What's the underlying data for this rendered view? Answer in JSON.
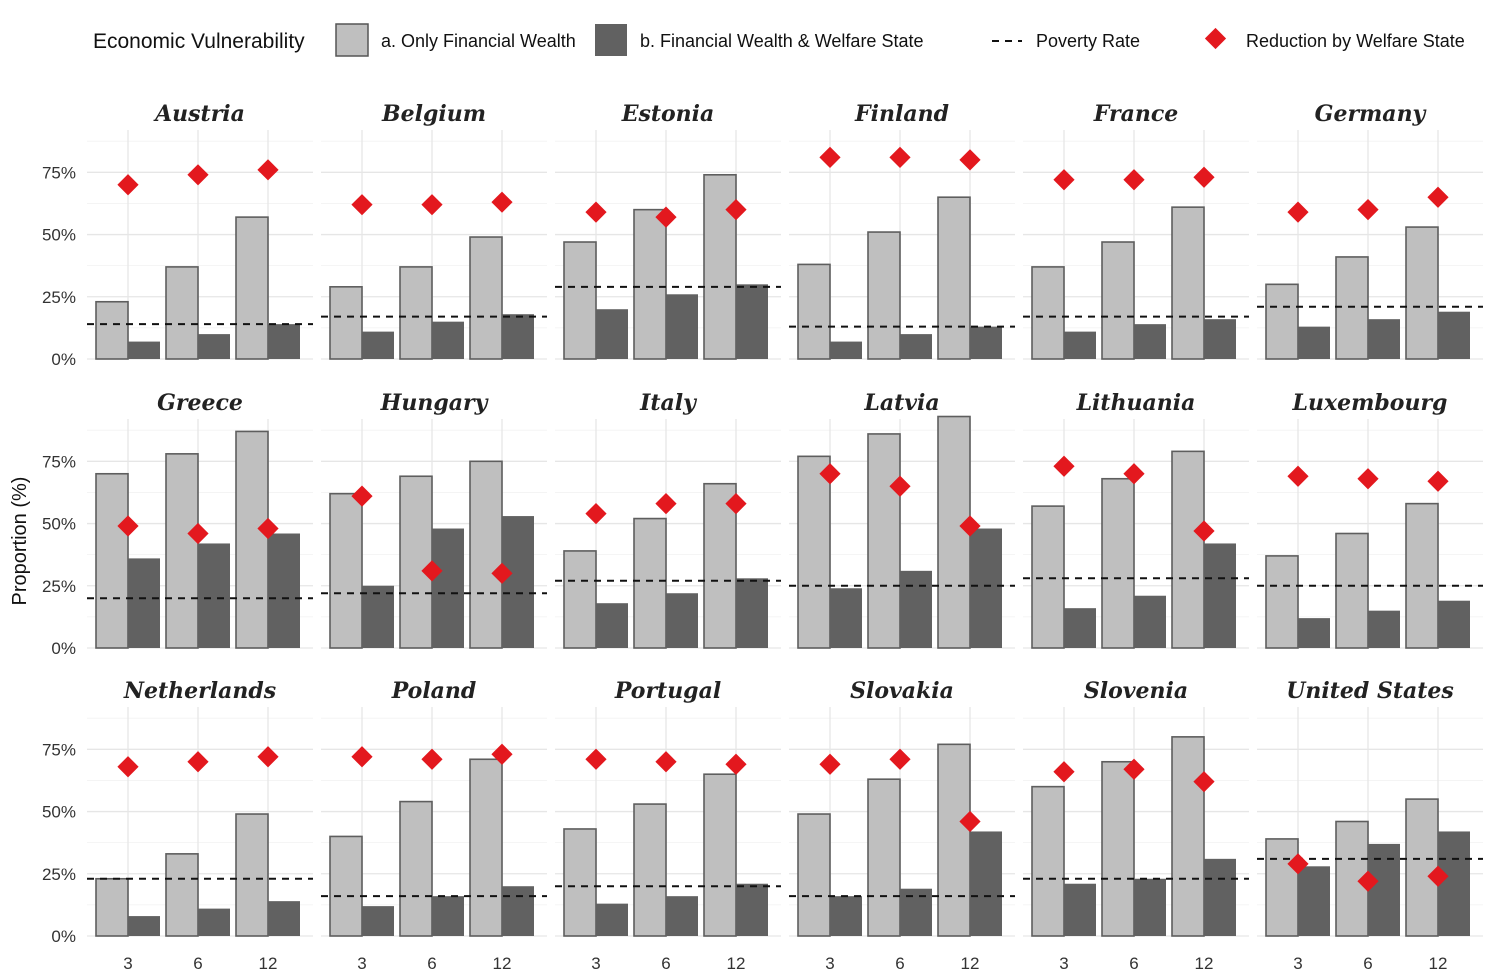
{
  "legend": {
    "title": "Economic Vulnerability",
    "items": [
      {
        "label": "a. Only Financial Wealth",
        "color": "#bfbfbf"
      },
      {
        "label": "b. Financial Wealth & Welfare State",
        "color": "#616161"
      },
      {
        "label": "Poverty Rate",
        "color": "#111111"
      },
      {
        "label": "Reduction by Welfare State",
        "color": "#e3181e"
      }
    ]
  },
  "chart_data": {
    "type": "bar",
    "ylabel": "Proportion (%)",
    "xlabel": "",
    "categories": [
      "3",
      "6",
      "12"
    ],
    "ylim": [
      0,
      92
    ],
    "yticks": [
      0,
      25,
      50,
      75
    ],
    "ytick_labels": [
      "0%",
      "25%",
      "50%",
      "75%"
    ],
    "colors": {
      "only_financial": "#bfbfbf",
      "financial_welfare": "#616161",
      "poverty": "#111111",
      "reduction": "#e3181e"
    },
    "panels": [
      {
        "country": "Austria",
        "only_financial": [
          23,
          37,
          57
        ],
        "financial_welfare": [
          7,
          10,
          14
        ],
        "poverty_rate": 14,
        "reduction": [
          70,
          74,
          76
        ]
      },
      {
        "country": "Belgium",
        "only_financial": [
          29,
          37,
          49
        ],
        "financial_welfare": [
          11,
          15,
          18
        ],
        "poverty_rate": 17,
        "reduction": [
          62,
          62,
          63
        ]
      },
      {
        "country": "Estonia",
        "only_financial": [
          47,
          60,
          74
        ],
        "financial_welfare": [
          20,
          26,
          30
        ],
        "poverty_rate": 29,
        "reduction": [
          59,
          57,
          60
        ]
      },
      {
        "country": "Finland",
        "only_financial": [
          38,
          51,
          65
        ],
        "financial_welfare": [
          7,
          10,
          13
        ],
        "poverty_rate": 13,
        "reduction": [
          81,
          81,
          80
        ]
      },
      {
        "country": "France",
        "only_financial": [
          37,
          47,
          61
        ],
        "financial_welfare": [
          11,
          14,
          16
        ],
        "poverty_rate": 17,
        "reduction": [
          72,
          72,
          73
        ]
      },
      {
        "country": "Germany",
        "only_financial": [
          30,
          41,
          53
        ],
        "financial_welfare": [
          13,
          16,
          19
        ],
        "poverty_rate": 21,
        "reduction": [
          59,
          60,
          65
        ]
      },
      {
        "country": "Greece",
        "only_financial": [
          70,
          78,
          87
        ],
        "financial_welfare": [
          36,
          42,
          46
        ],
        "poverty_rate": 20,
        "reduction": [
          49,
          46,
          48
        ]
      },
      {
        "country": "Hungary",
        "only_financial": [
          62,
          69,
          75
        ],
        "financial_welfare": [
          25,
          48,
          53
        ],
        "poverty_rate": 22,
        "reduction": [
          61,
          31,
          30
        ]
      },
      {
        "country": "Italy",
        "only_financial": [
          39,
          52,
          66
        ],
        "financial_welfare": [
          18,
          22,
          28
        ],
        "poverty_rate": 27,
        "reduction": [
          54,
          58,
          58
        ]
      },
      {
        "country": "Latvia",
        "only_financial": [
          77,
          86,
          93
        ],
        "financial_welfare": [
          24,
          31,
          48
        ],
        "poverty_rate": 25,
        "reduction": [
          70,
          65,
          49
        ]
      },
      {
        "country": "Lithuania",
        "only_financial": [
          57,
          68,
          79
        ],
        "financial_welfare": [
          16,
          21,
          42
        ],
        "poverty_rate": 28,
        "reduction": [
          73,
          70,
          47
        ]
      },
      {
        "country": "Luxembourg",
        "only_financial": [
          37,
          46,
          58
        ],
        "financial_welfare": [
          12,
          15,
          19
        ],
        "poverty_rate": 25,
        "reduction": [
          69,
          68,
          67
        ]
      },
      {
        "country": "Netherlands",
        "only_financial": [
          23,
          33,
          49
        ],
        "financial_welfare": [
          8,
          11,
          14
        ],
        "poverty_rate": 23,
        "reduction": [
          68,
          70,
          72
        ]
      },
      {
        "country": "Poland",
        "only_financial": [
          40,
          54,
          71
        ],
        "financial_welfare": [
          12,
          16,
          20
        ],
        "poverty_rate": 16,
        "reduction": [
          72,
          71,
          73
        ]
      },
      {
        "country": "Portugal",
        "only_financial": [
          43,
          53,
          65
        ],
        "financial_welfare": [
          13,
          16,
          21
        ],
        "poverty_rate": 20,
        "reduction": [
          71,
          70,
          69
        ]
      },
      {
        "country": "Slovakia",
        "only_financial": [
          49,
          63,
          77
        ],
        "financial_welfare": [
          16,
          19,
          42
        ],
        "poverty_rate": 16,
        "reduction": [
          69,
          71,
          46
        ]
      },
      {
        "country": "Slovenia",
        "only_financial": [
          60,
          70,
          80
        ],
        "financial_welfare": [
          21,
          23,
          31
        ],
        "poverty_rate": 23,
        "reduction": [
          66,
          67,
          62
        ]
      },
      {
        "country": "United States",
        "only_financial": [
          39,
          46,
          55
        ],
        "financial_welfare": [
          28,
          37,
          42
        ],
        "poverty_rate": 31,
        "reduction": [
          29,
          22,
          24
        ]
      }
    ]
  }
}
